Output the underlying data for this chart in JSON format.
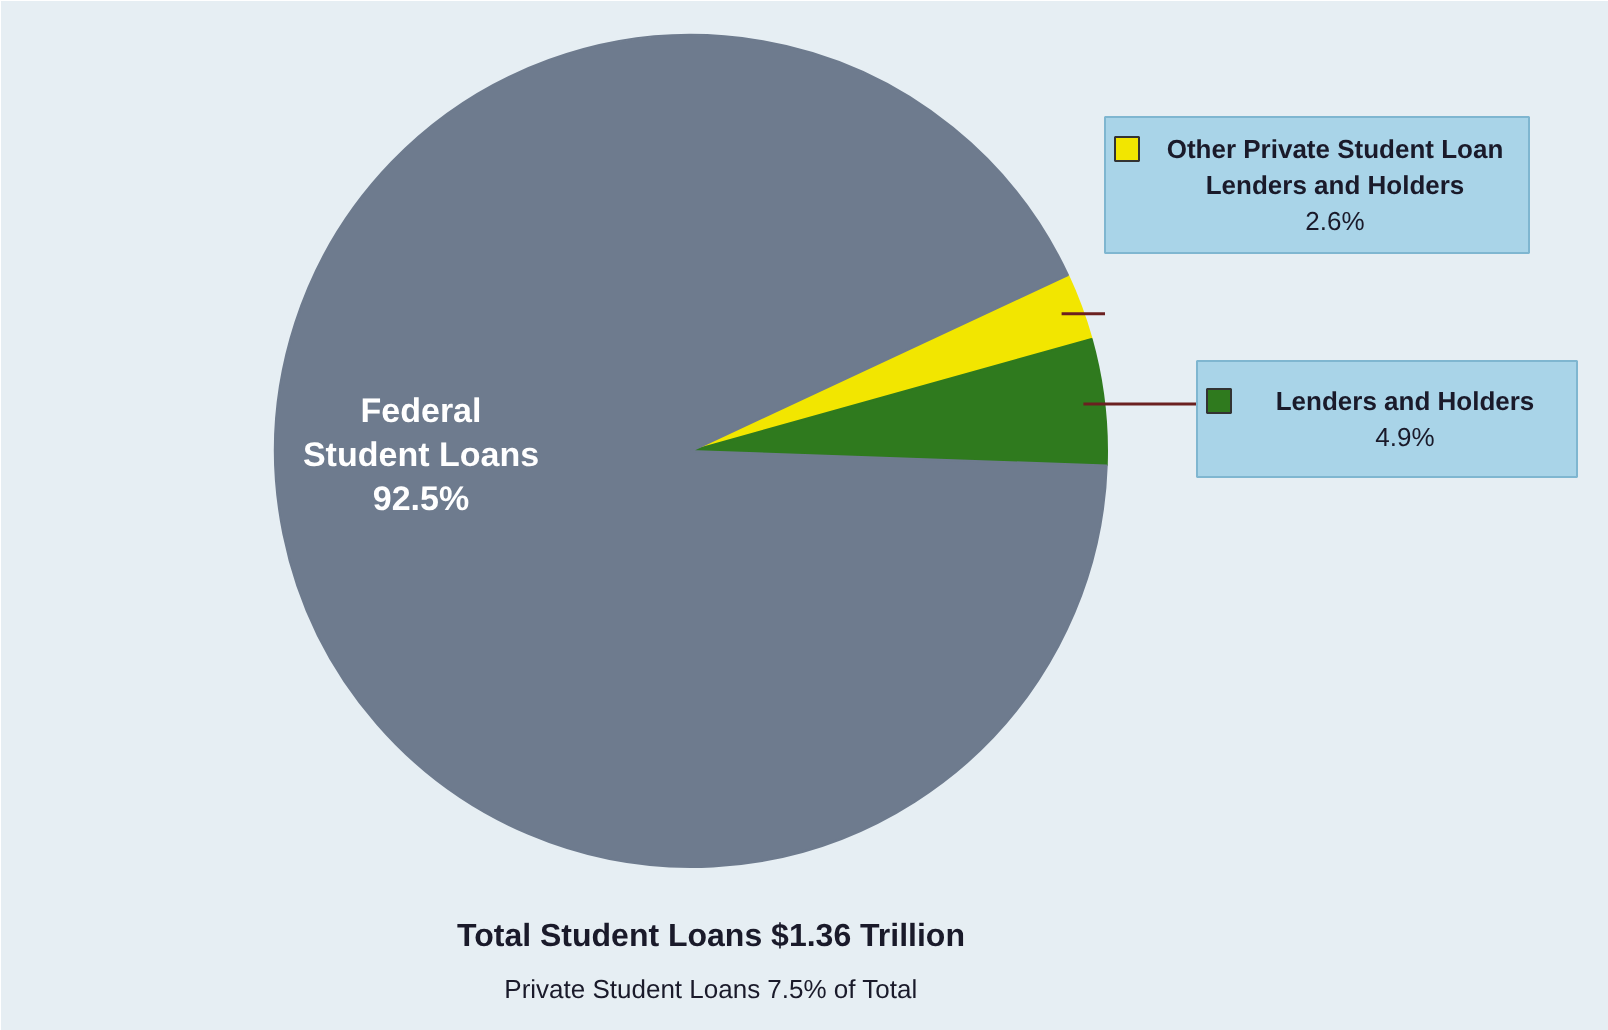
{
  "chart_data": {
    "type": "pie",
    "categories": [
      "Other Private Student Loan Lenders and Holders",
      "Lenders and Holders",
      "Federal Student Loans"
    ],
    "values": [
      2.6,
      4.9,
      92.5
    ],
    "colors": [
      "#f2e600",
      "#2f7a1e",
      "#6e7b8e"
    ],
    "legend": "right",
    "value_labels": [
      "2.6%",
      "4.9%",
      "92.5%"
    ],
    "annotations": [
      "Total Student Loans $1.36 Trillion",
      "Private Student Loans 7.5% of Total"
    ]
  }
}
